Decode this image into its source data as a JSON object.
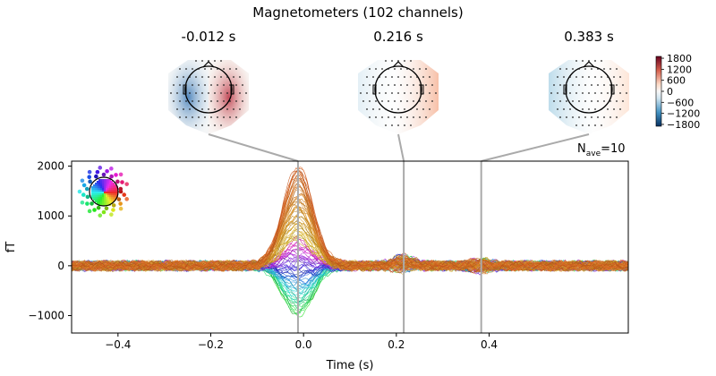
{
  "figure": {
    "title": "Magnetometers (102 channels)",
    "nave_prefix": "N",
    "nave_sub": "ave",
    "nave_value": "=10"
  },
  "chart_data": [
    {
      "type": "line",
      "title": "",
      "xlabel": "Time (s)",
      "ylabel": "fT",
      "xlim": [
        -0.5,
        0.7
      ],
      "ylim": [
        -1350,
        2100
      ],
      "x_ticks": [
        "−0.4",
        "−0.2",
        "0.0",
        "0.2",
        "0.4"
      ],
      "x_tick_values": [
        -0.4,
        -0.2,
        0.0,
        0.2,
        0.4
      ],
      "y_ticks": [
        "−1000",
        "0",
        "1000",
        "2000"
      ],
      "y_tick_values": [
        -1000,
        0,
        1000,
        2000
      ],
      "grid": false,
      "n_channels": 102,
      "marker_times": [
        -0.012,
        0.216,
        0.383
      ],
      "peak": {
        "time": -0.012,
        "max_fT": 2000,
        "min_fT": -1000
      },
      "color_by": "sensor location (spatial colors)"
    },
    {
      "type": "heatmap",
      "subtype": "topomap",
      "times": [
        "-0.012 s",
        "0.216 s",
        "0.383 s"
      ],
      "colorbar_ticks": [
        "1800",
        "1200",
        "600",
        "0",
        "−600",
        "−1200",
        "−1800"
      ],
      "colorbar_range": [
        -1900,
        1900
      ],
      "colormap": "RdBu_r"
    }
  ],
  "colors": {
    "axis": "#000000",
    "marker_line": "#aaaaaa",
    "positive": "#b2182b",
    "negative": "#2166ac"
  }
}
